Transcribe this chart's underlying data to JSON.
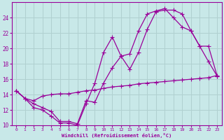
{
  "xlabel": "Windchill (Refroidissement éolien,°C)",
  "bg_color": "#c8e8e8",
  "line_color": "#990099",
  "grid_color": "#b0d0d0",
  "xlim": [
    -0.5,
    23.5
  ],
  "ylim": [
    10,
    26
  ],
  "xticks": [
    0,
    1,
    2,
    3,
    4,
    5,
    6,
    7,
    8,
    9,
    10,
    11,
    12,
    13,
    14,
    15,
    16,
    17,
    18,
    19,
    20,
    21,
    22,
    23
  ],
  "yticks": [
    10,
    12,
    14,
    16,
    18,
    20,
    22,
    24
  ],
  "curve1_x": [
    0,
    1,
    2,
    3,
    4,
    5,
    6,
    7,
    8,
    9,
    10,
    11,
    12,
    13,
    14,
    15,
    16,
    17,
    18,
    19,
    20,
    21,
    22,
    23
  ],
  "curve1_y": [
    14.5,
    13.5,
    12.8,
    12.3,
    11.8,
    10.5,
    10.5,
    10.2,
    13.2,
    13.0,
    15.5,
    17.5,
    19.0,
    19.3,
    22.3,
    24.5,
    24.9,
    25.2,
    24.0,
    22.8,
    22.3,
    20.3,
    20.3,
    16.4
  ],
  "curve2_x": [
    0,
    1,
    2,
    3,
    4,
    5,
    6,
    7,
    8,
    9,
    10,
    11,
    12,
    13,
    14,
    15,
    16,
    17,
    18,
    19,
    20,
    21,
    22,
    23
  ],
  "curve2_y": [
    14.5,
    13.5,
    12.3,
    12.0,
    11.2,
    10.3,
    10.3,
    10.0,
    12.8,
    15.5,
    19.5,
    21.5,
    19.0,
    17.3,
    19.5,
    22.5,
    24.8,
    25.0,
    25.0,
    24.5,
    22.3,
    20.3,
    18.3,
    16.4
  ],
  "curve3_x": [
    0,
    1,
    2,
    3,
    4,
    5,
    6,
    7,
    8,
    9,
    10,
    11,
    12,
    13,
    14,
    15,
    16,
    17,
    18,
    19,
    20,
    21,
    22,
    23
  ],
  "curve3_y": [
    14.5,
    13.5,
    13.2,
    13.8,
    14.0,
    14.1,
    14.1,
    14.3,
    14.5,
    14.6,
    14.8,
    15.0,
    15.1,
    15.2,
    15.4,
    15.5,
    15.6,
    15.7,
    15.8,
    15.9,
    16.0,
    16.1,
    16.2,
    16.5
  ]
}
